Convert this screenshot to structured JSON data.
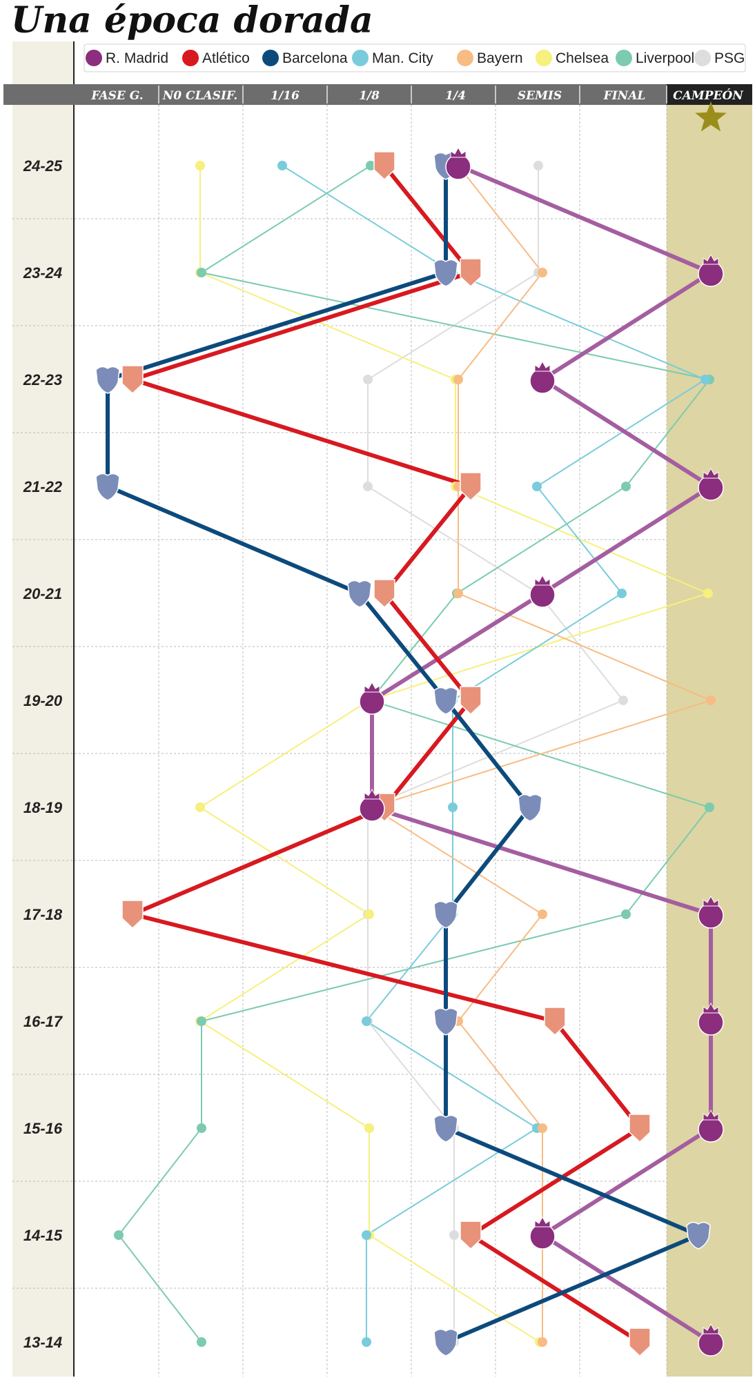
{
  "title": "Una época dorada",
  "chart_data": {
    "type": "line",
    "title": "Una época dorada",
    "stages": [
      "FASE G.",
      "N0 CLASIF.",
      "1/16",
      "1/8",
      "1/4",
      "SEMIS",
      "FINAL",
      "CAMPEÓN"
    ],
    "seasons": [
      "24-25",
      "23-24",
      "22-23",
      "21-22",
      "20-21",
      "19-20",
      "18-19",
      "17-18",
      "16-17",
      "15-16",
      "14-15",
      "13-14"
    ],
    "series": [
      {
        "name": "R. Madrid",
        "color": "#8b2e7e",
        "line_color": "#a45ea0",
        "marker": "crown-crest",
        "values": [
          "1/4",
          "CAMPEÓN",
          "SEMIS",
          "CAMPEÓN",
          "SEMIS",
          "1/8",
          "1/8",
          "CAMPEÓN",
          "CAMPEÓN",
          "CAMPEÓN",
          "SEMIS",
          "CAMPEÓN"
        ]
      },
      {
        "name": "Atlético",
        "color": "#d71920",
        "marker_color": "#e8927a",
        "marker": "shield",
        "values": [
          "1/8",
          "1/4",
          "FASE G.",
          "1/4",
          "1/8",
          "1/4",
          "1/8",
          "FASE G.",
          "SEMIS",
          "FINAL",
          "1/4",
          "FINAL"
        ]
      },
      {
        "name": "Barcelona",
        "color": "#0d4a7c",
        "marker_color": "#7b8cb8",
        "marker": "crest",
        "values": [
          "1/4",
          "1/4",
          "FASE G.",
          "FASE G.",
          "1/8",
          "1/4",
          "SEMIS",
          "1/4",
          "1/4",
          "1/4",
          "CAMPEÓN",
          "1/4"
        ]
      },
      {
        "name": "Man. City",
        "color": "#79ccdb",
        "marker": "dot",
        "values": [
          "1/16",
          "1/4",
          "CAMPEÓN",
          "SEMIS",
          "FINAL",
          "1/4",
          "1/4",
          "1/4",
          "1/8",
          "SEMIS",
          "1/8",
          "1/8"
        ]
      },
      {
        "name": "Bayern",
        "color": "#f7bc83",
        "marker": "dot",
        "values": [
          "1/4",
          "SEMIS",
          "1/4",
          "1/4",
          "1/4",
          "CAMPEÓN",
          "1/8",
          "SEMIS",
          "1/4",
          "SEMIS",
          "SEMIS",
          "SEMIS"
        ]
      },
      {
        "name": "Chelsea",
        "color": "#f6f07c",
        "marker": "dot",
        "values": [
          "N0 CLASIF.",
          "N0 CLASIF.",
          "1/4",
          "1/4",
          "CAMPEÓN",
          "1/8",
          "N0 CLASIF.",
          "1/8",
          "N0 CLASIF.",
          "1/8",
          "1/8",
          "SEMIS"
        ]
      },
      {
        "name": "Liverpool",
        "color": "#7ccbae",
        "marker": "dot",
        "values": [
          "1/8",
          "N0 CLASIF.",
          "CAMPEÓN",
          "FINAL",
          "1/4",
          "1/8",
          "CAMPEÓN",
          "FINAL",
          "N0 CLASIF.",
          "N0 CLASIF.",
          "FASE G.",
          "N0 CLASIF."
        ]
      },
      {
        "name": "PSG",
        "color": "#dddddd",
        "marker": "dot",
        "values": [
          "SEMIS",
          "SEMIS",
          "1/8",
          "1/8",
          "SEMIS",
          "FINAL",
          "1/8",
          "1/8",
          "1/8",
          "1/4",
          "1/4",
          "1/4"
        ]
      }
    ],
    "champion_star_color": "#9b8d1b",
    "champion_column_color": "#ddd5a3"
  }
}
